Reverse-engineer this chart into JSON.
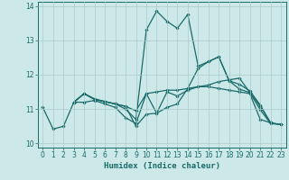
{
  "xlabel": "Humidex (Indice chaleur)",
  "bg_color": "#cce8e8",
  "grid_color": "#aacccc",
  "line_color": "#1a6b6b",
  "xlim": [
    -0.5,
    23.5
  ],
  "ylim": [
    9.88,
    14.12
  ],
  "xticks": [
    0,
    1,
    2,
    3,
    4,
    5,
    6,
    7,
    8,
    9,
    10,
    11,
    12,
    13,
    14,
    15,
    16,
    17,
    18,
    19,
    20,
    21,
    22,
    23
  ],
  "yticks": [
    10,
    11,
    12,
    13,
    14
  ],
  "lines": [
    {
      "x": [
        0,
        1,
        2,
        3,
        4,
        5,
        6,
        7,
        8,
        9,
        10,
        11,
        12,
        13,
        14,
        15,
        16,
        17,
        18,
        19,
        20,
        21,
        22,
        23
      ],
      "y": [
        11.05,
        10.42,
        10.5,
        11.2,
        11.2,
        11.25,
        11.15,
        11.05,
        10.75,
        10.58,
        11.45,
        11.5,
        11.55,
        11.55,
        11.6,
        11.65,
        11.65,
        11.6,
        11.55,
        11.5,
        11.45,
        10.7,
        10.6,
        10.55
      ]
    },
    {
      "x": [
        3,
        4,
        5,
        6,
        7,
        8,
        9,
        10,
        11,
        12,
        13,
        14,
        15,
        16,
        17,
        18,
        19,
        20,
        21,
        22
      ],
      "y": [
        11.2,
        11.45,
        11.3,
        11.22,
        11.15,
        11.0,
        10.7,
        13.3,
        13.85,
        13.55,
        13.35,
        13.75,
        12.25,
        12.38,
        12.52,
        11.82,
        11.72,
        11.53,
        11.12,
        10.6
      ]
    },
    {
      "x": [
        3,
        4,
        5,
        6,
        7,
        8,
        9,
        10,
        11,
        12,
        13,
        14,
        15,
        16,
        17,
        18,
        19,
        20,
        21,
        22,
        23
      ],
      "y": [
        11.2,
        11.45,
        11.28,
        11.22,
        11.15,
        11.08,
        10.95,
        11.45,
        10.88,
        11.5,
        11.38,
        11.55,
        11.65,
        11.7,
        11.8,
        11.85,
        11.9,
        11.48,
        11.08,
        10.6,
        10.55
      ]
    },
    {
      "x": [
        3,
        4,
        5,
        6,
        7,
        8,
        9,
        10,
        11,
        12,
        13,
        14,
        15,
        16,
        17,
        18,
        19,
        20,
        21,
        22,
        23
      ],
      "y": [
        11.2,
        11.45,
        11.28,
        11.22,
        11.15,
        11.08,
        10.5,
        10.85,
        10.88,
        11.05,
        11.15,
        11.6,
        12.18,
        12.38,
        12.52,
        11.82,
        11.58,
        11.48,
        10.98,
        10.58,
        10.55
      ]
    }
  ]
}
